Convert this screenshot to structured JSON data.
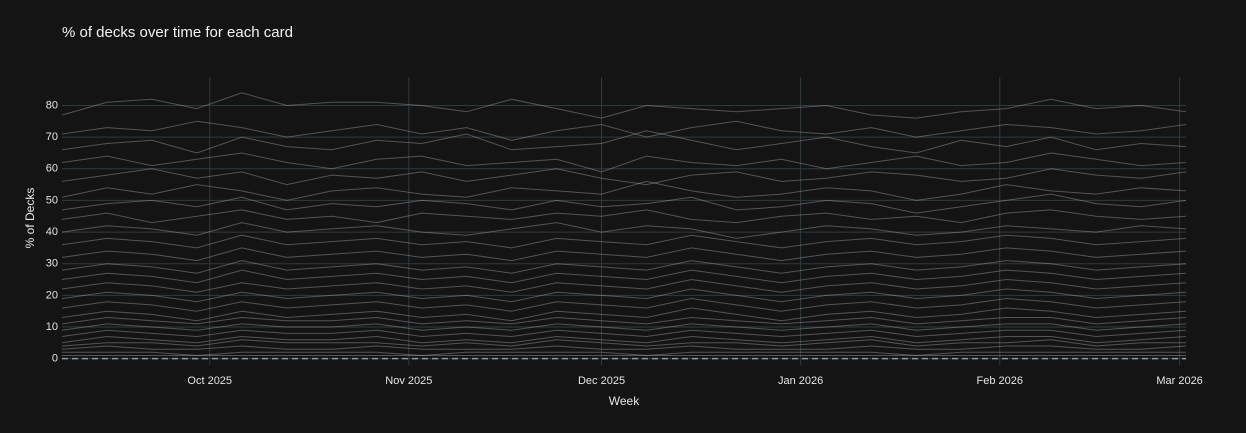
{
  "chart_data": {
    "type": "line",
    "title": "% of decks over time for each card",
    "x_label": "Week",
    "y_label": "% of Decks",
    "x": [
      0,
      1,
      2,
      3,
      4,
      5,
      6,
      7,
      8,
      9,
      10,
      11,
      12,
      13,
      14,
      15,
      16,
      17,
      18,
      19,
      20,
      21,
      22,
      23,
      24,
      25
    ],
    "xlim": [
      0,
      25
    ],
    "xticks": [
      {
        "value": 3.286,
        "label": "Oct 2025"
      },
      {
        "value": 7.714,
        "label": "Nov 2025"
      },
      {
        "value": 12,
        "label": "Dec 2025"
      },
      {
        "value": 16.429,
        "label": "Jan 2026"
      },
      {
        "value": 20.857,
        "label": "Feb 2026"
      },
      {
        "value": 24.857,
        "label": "Mar 2026"
      }
    ],
    "ylim": [
      -2,
      89
    ],
    "yticks": [
      0,
      10,
      20,
      30,
      40,
      50,
      60,
      70,
      80
    ],
    "grid": true,
    "color": "rgba(190,190,190,0.38)",
    "series": [
      {
        "values": [
          77,
          81,
          82,
          79,
          84,
          80,
          81,
          81,
          80,
          78,
          82,
          79,
          76,
          80,
          79,
          78,
          79,
          80,
          77,
          76,
          78,
          79,
          82,
          79,
          80,
          78
        ]
      },
      {
        "values": [
          71,
          73,
          72,
          75,
          73,
          70,
          72,
          74,
          71,
          73,
          69,
          72,
          74,
          70,
          73,
          75,
          72,
          71,
          73,
          70,
          72,
          74,
          73,
          71,
          72,
          74
        ]
      },
      {
        "values": [
          66,
          68,
          69,
          65,
          70,
          67,
          66,
          69,
          68,
          71,
          66,
          67,
          68,
          72,
          69,
          66,
          68,
          70,
          67,
          65,
          69,
          67,
          70,
          66,
          68,
          67
        ]
      },
      {
        "values": [
          62,
          64,
          61,
          63,
          65,
          62,
          60,
          63,
          64,
          61,
          62,
          63,
          59,
          64,
          62,
          61,
          63,
          60,
          62,
          64,
          61,
          62,
          65,
          63,
          61,
          62
        ]
      },
      {
        "values": [
          56,
          58,
          60,
          57,
          59,
          55,
          58,
          57,
          59,
          56,
          58,
          60,
          57,
          55,
          58,
          59,
          56,
          57,
          59,
          58,
          56,
          57,
          60,
          58,
          57,
          59
        ]
      },
      {
        "values": [
          51,
          54,
          52,
          55,
          53,
          50,
          53,
          54,
          52,
          51,
          54,
          53,
          52,
          56,
          53,
          51,
          52,
          54,
          53,
          50,
          52,
          55,
          53,
          52,
          54,
          53
        ]
      },
      {
        "values": [
          47,
          49,
          50,
          48,
          51,
          47,
          49,
          48,
          50,
          49,
          47,
          50,
          48,
          49,
          51,
          47,
          48,
          50,
          49,
          46,
          48,
          50,
          52,
          49,
          48,
          50
        ]
      },
      {
        "values": [
          44,
          46,
          43,
          45,
          47,
          44,
          45,
          43,
          46,
          45,
          44,
          46,
          45,
          47,
          44,
          43,
          45,
          46,
          44,
          45,
          43,
          46,
          47,
          45,
          44,
          45
        ]
      },
      {
        "values": [
          40,
          42,
          41,
          39,
          43,
          40,
          41,
          42,
          40,
          39,
          41,
          43,
          40,
          42,
          41,
          38,
          40,
          42,
          41,
          39,
          40,
          42,
          41,
          40,
          42,
          41
        ]
      },
      {
        "values": [
          36,
          38,
          37,
          35,
          39,
          36,
          37,
          38,
          36,
          37,
          35,
          38,
          37,
          36,
          39,
          37,
          35,
          37,
          38,
          36,
          37,
          39,
          38,
          36,
          37,
          38
        ]
      },
      {
        "values": [
          32,
          34,
          33,
          31,
          35,
          32,
          33,
          34,
          32,
          33,
          31,
          34,
          33,
          32,
          35,
          33,
          31,
          33,
          34,
          32,
          33,
          35,
          34,
          32,
          33,
          34
        ]
      },
      {
        "values": [
          28,
          30,
          29,
          27,
          31,
          28,
          29,
          30,
          28,
          29,
          27,
          30,
          29,
          28,
          31,
          29,
          27,
          29,
          30,
          28,
          29,
          31,
          30,
          28,
          29,
          30
        ]
      },
      {
        "values": [
          25,
          27,
          26,
          24,
          28,
          25,
          26,
          27,
          25,
          26,
          24,
          27,
          26,
          25,
          28,
          26,
          24,
          26,
          27,
          25,
          26,
          28,
          27,
          25,
          26,
          27
        ]
      },
      {
        "values": [
          22,
          24,
          23,
          21,
          24,
          22,
          23,
          24,
          22,
          23,
          21,
          24,
          23,
          22,
          25,
          23,
          21,
          23,
          24,
          22,
          23,
          25,
          24,
          22,
          23,
          24
        ]
      },
      {
        "values": [
          19,
          21,
          20,
          18,
          21,
          19,
          20,
          21,
          19,
          20,
          18,
          21,
          20,
          19,
          22,
          20,
          18,
          20,
          21,
          19,
          20,
          22,
          21,
          19,
          20,
          21
        ]
      },
      {
        "values": [
          16,
          18,
          17,
          15,
          18,
          16,
          17,
          18,
          16,
          17,
          15,
          18,
          17,
          16,
          19,
          17,
          15,
          17,
          18,
          16,
          17,
          19,
          18,
          16,
          17,
          18
        ]
      },
      {
        "values": [
          13,
          15,
          14,
          12,
          15,
          13,
          14,
          15,
          13,
          14,
          12,
          15,
          14,
          13,
          16,
          14,
          12,
          14,
          15,
          13,
          14,
          16,
          15,
          13,
          14,
          15
        ]
      },
      {
        "values": [
          11,
          13,
          12,
          11,
          13,
          12,
          12,
          13,
          11,
          12,
          11,
          13,
          12,
          11,
          13,
          12,
          11,
          12,
          13,
          11,
          12,
          13,
          13,
          11,
          12,
          13
        ]
      },
      {
        "values": [
          9,
          11,
          10,
          9,
          11,
          10,
          10,
          11,
          9,
          10,
          9,
          11,
          10,
          9,
          11,
          10,
          9,
          10,
          11,
          9,
          10,
          11,
          11,
          9,
          10,
          11
        ]
      },
      {
        "values": [
          7,
          9,
          8,
          7,
          9,
          8,
          8,
          9,
          7,
          8,
          7,
          9,
          8,
          7,
          9,
          8,
          7,
          8,
          9,
          7,
          8,
          9,
          9,
          7,
          8,
          9
        ]
      },
      {
        "values": [
          5,
          7,
          6,
          5,
          7,
          6,
          6,
          7,
          5,
          6,
          5,
          7,
          6,
          5,
          7,
          6,
          5,
          6,
          7,
          5,
          6,
          7,
          7,
          5,
          6,
          7
        ]
      },
      {
        "values": [
          4,
          5,
          5,
          4,
          6,
          5,
          5,
          5,
          4,
          5,
          4,
          6,
          5,
          4,
          5,
          5,
          4,
          5,
          6,
          4,
          5,
          5,
          6,
          4,
          5,
          5
        ]
      },
      {
        "values": [
          3,
          4,
          3,
          3,
          4,
          3,
          3,
          4,
          3,
          3,
          3,
          4,
          3,
          3,
          4,
          3,
          3,
          3,
          4,
          3,
          3,
          4,
          4,
          3,
          3,
          4
        ]
      },
      {
        "values": [
          2,
          2,
          2,
          1,
          2,
          2,
          2,
          2,
          1,
          2,
          2,
          2,
          2,
          1,
          2,
          2,
          2,
          2,
          2,
          1,
          2,
          2,
          2,
          2,
          2,
          2
        ]
      },
      {
        "values": [
          1,
          1,
          1,
          1,
          1,
          1,
          1,
          1,
          1,
          1,
          1,
          1,
          1,
          1,
          1,
          1,
          1,
          1,
          1,
          1,
          1,
          1,
          1,
          1,
          1,
          1
        ]
      }
    ]
  }
}
